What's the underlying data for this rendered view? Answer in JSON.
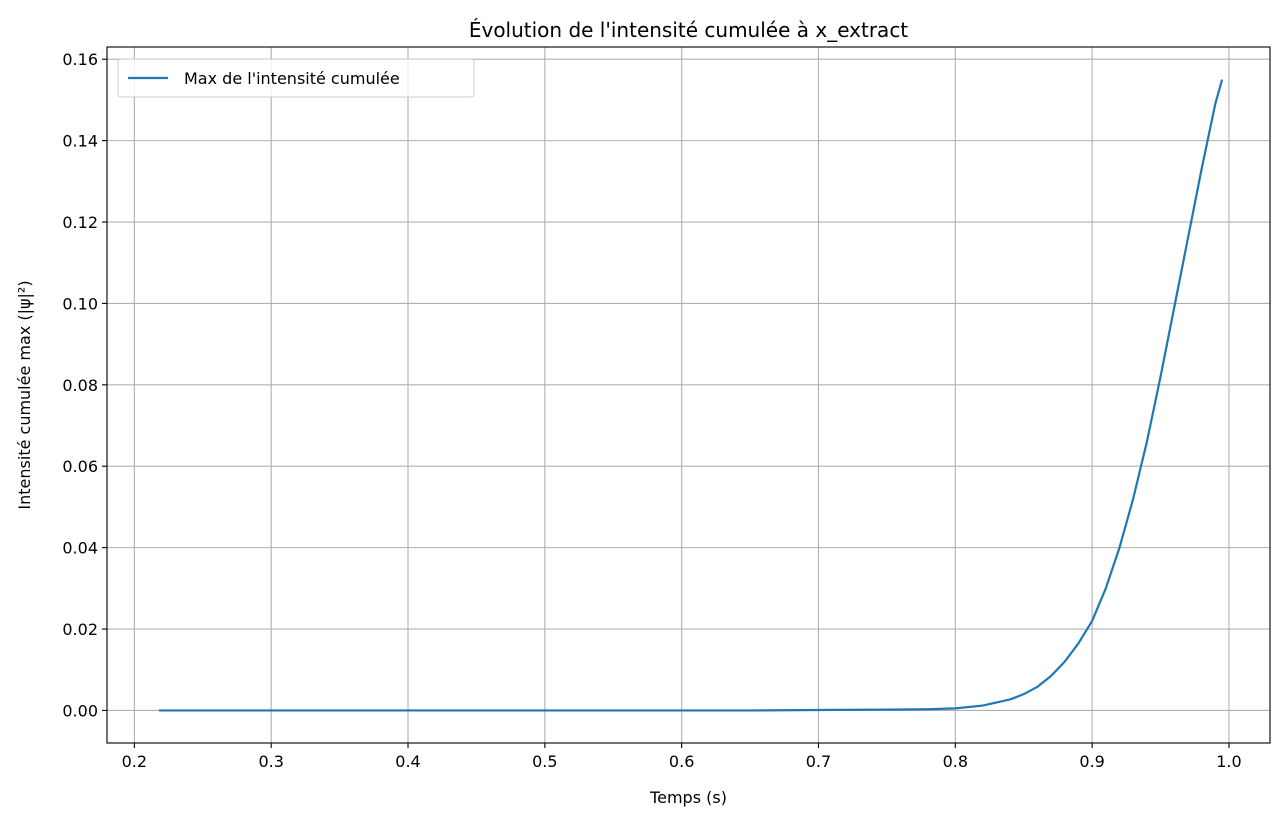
{
  "chart_data": {
    "type": "line",
    "title": "Évolution de l'intensité cumulée à x_extract",
    "xlabel": "Temps (s)",
    "ylabel": "Intensité cumulée max (|ψ|²)",
    "xlim": [
      0.18,
      1.03
    ],
    "ylim": [
      -0.008,
      0.163
    ],
    "xticks": [
      0.2,
      0.3,
      0.4,
      0.5,
      0.6,
      0.7,
      0.8,
      0.9,
      1.0
    ],
    "xtick_labels": [
      "0.2",
      "0.3",
      "0.4",
      "0.5",
      "0.6",
      "0.7",
      "0.8",
      "0.9",
      "1.0"
    ],
    "yticks": [
      0.0,
      0.02,
      0.04,
      0.06,
      0.08,
      0.1,
      0.12,
      0.14,
      0.16
    ],
    "ytick_labels": [
      "0.00",
      "0.02",
      "0.04",
      "0.06",
      "0.08",
      "0.10",
      "0.12",
      "0.14",
      "0.16"
    ],
    "grid": true,
    "legend_position": "top-left",
    "series": [
      {
        "name": "Max de l'intensité cumulée",
        "color": "#1f77b4",
        "x": [
          0.218,
          0.3,
          0.4,
          0.5,
          0.6,
          0.65,
          0.7,
          0.75,
          0.78,
          0.8,
          0.82,
          0.84,
          0.85,
          0.86,
          0.87,
          0.88,
          0.89,
          0.9,
          0.91,
          0.92,
          0.93,
          0.94,
          0.95,
          0.96,
          0.97,
          0.98,
          0.99,
          0.995
        ],
        "y": [
          0.0,
          0.0,
          0.0,
          0.0,
          0.0,
          0.0,
          0.0001,
          0.0002,
          0.0003,
          0.0005,
          0.0012,
          0.0027,
          0.004,
          0.0058,
          0.0085,
          0.012,
          0.0165,
          0.022,
          0.03,
          0.04,
          0.052,
          0.066,
          0.082,
          0.099,
          0.116,
          0.133,
          0.149,
          0.155
        ]
      }
    ]
  }
}
